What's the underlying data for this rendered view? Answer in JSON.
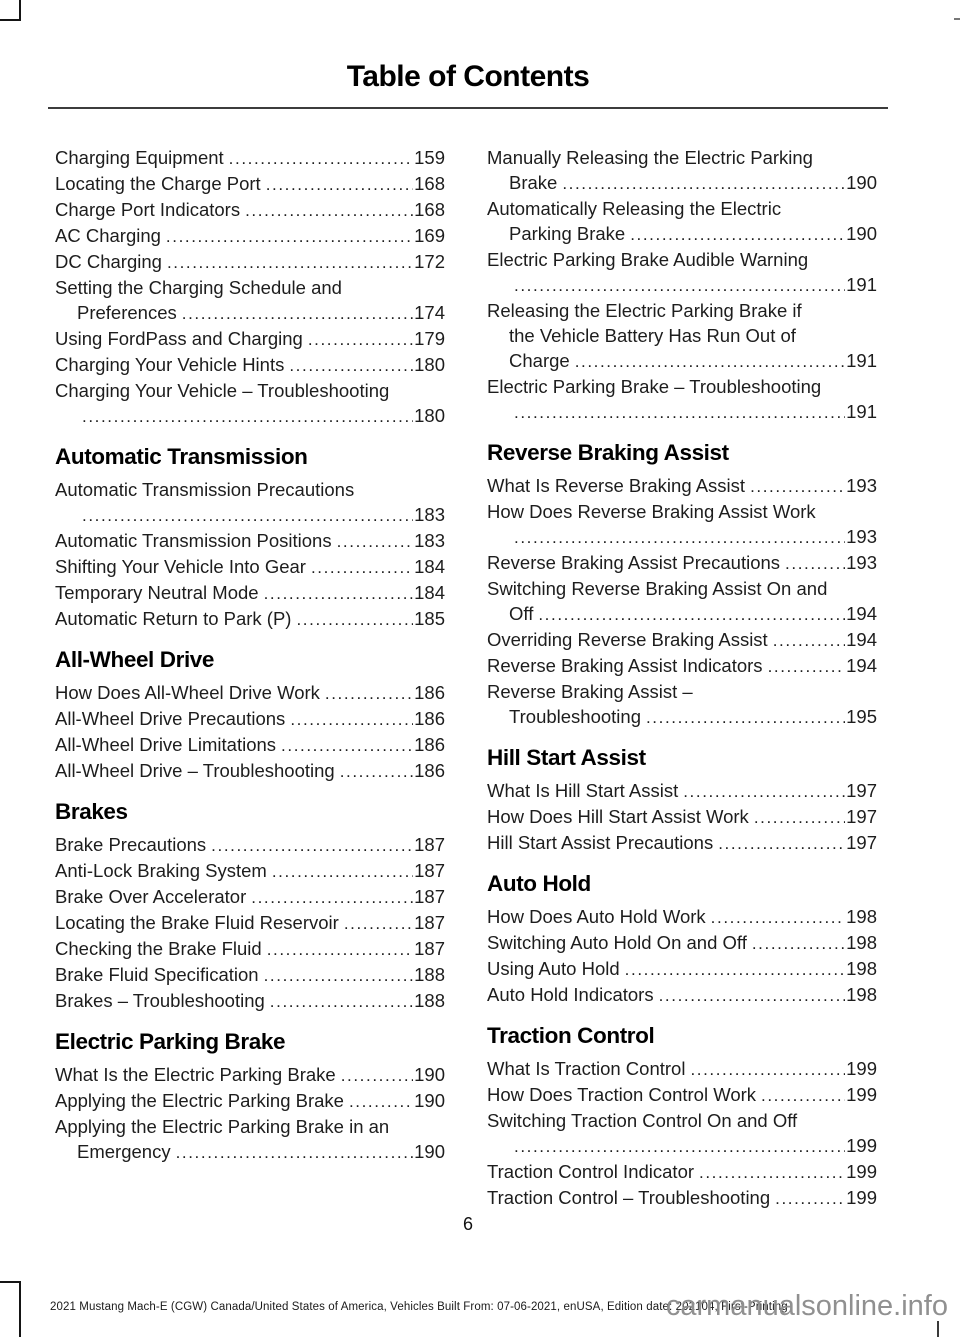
{
  "document": {
    "title": "Table of Contents",
    "page_number": "6",
    "footer": "2021 Mustang Mach-E (CGW) Canada/United States of America, Vehicles Built From: 07-06-2021, enUSA, Edition date: 202104, First-Printing",
    "watermark": "carmanualsonline.info"
  },
  "colors": {
    "text": "#1d1d1d",
    "heading": "#000000",
    "rule": "#3c3c3c",
    "watermark_gray": "#909090"
  },
  "toc": {
    "columns": [
      {
        "blocks": [
          {
            "heading": null,
            "entries": [
              {
                "lines": [
                  "Charging Equipment"
                ],
                "page": "159"
              },
              {
                "lines": [
                  "Locating the Charge Port"
                ],
                "page": "168"
              },
              {
                "lines": [
                  "Charge Port Indicators"
                ],
                "page": "168"
              },
              {
                "lines": [
                  "AC Charging"
                ],
                "page": "169"
              },
              {
                "lines": [
                  "DC Charging"
                ],
                "page": "172"
              },
              {
                "lines": [
                  "Setting the Charging Schedule and",
                  "Preferences"
                ],
                "page": "174"
              },
              {
                "lines": [
                  "Using FordPass and Charging"
                ],
                "page": "179"
              },
              {
                "lines": [
                  "Charging Your Vehicle Hints"
                ],
                "page": "180"
              },
              {
                "lines": [
                  "Charging Your Vehicle – Troubleshooting",
                  ""
                ],
                "page": "180"
              }
            ]
          },
          {
            "heading": "Automatic Transmission",
            "entries": [
              {
                "lines": [
                  "Automatic Transmission Precautions",
                  ""
                ],
                "page": "183"
              },
              {
                "lines": [
                  "Automatic Transmission Positions"
                ],
                "page": "183"
              },
              {
                "lines": [
                  "Shifting Your Vehicle Into Gear"
                ],
                "page": "184"
              },
              {
                "lines": [
                  "Temporary Neutral Mode"
                ],
                "page": "184"
              },
              {
                "lines": [
                  "Automatic Return to Park (P)"
                ],
                "page": "185"
              }
            ]
          },
          {
            "heading": "All-Wheel Drive",
            "entries": [
              {
                "lines": [
                  "How Does All-Wheel Drive Work"
                ],
                "page": "186"
              },
              {
                "lines": [
                  "All-Wheel Drive Precautions"
                ],
                "page": "186"
              },
              {
                "lines": [
                  "All-Wheel Drive Limitations"
                ],
                "page": "186"
              },
              {
                "lines": [
                  "All-Wheel Drive – Troubleshooting"
                ],
                "page": "186"
              }
            ]
          },
          {
            "heading": "Brakes",
            "entries": [
              {
                "lines": [
                  "Brake Precautions"
                ],
                "page": "187"
              },
              {
                "lines": [
                  "Anti-Lock Braking System"
                ],
                "page": "187"
              },
              {
                "lines": [
                  "Brake Over Accelerator"
                ],
                "page": "187"
              },
              {
                "lines": [
                  "Locating the Brake Fluid Reservoir"
                ],
                "page": "187"
              },
              {
                "lines": [
                  "Checking the Brake Fluid"
                ],
                "page": "187"
              },
              {
                "lines": [
                  "Brake Fluid Specification"
                ],
                "page": "188"
              },
              {
                "lines": [
                  "Brakes – Troubleshooting"
                ],
                "page": "188"
              }
            ]
          },
          {
            "heading": "Electric Parking Brake",
            "entries": [
              {
                "lines": [
                  "What Is the Electric Parking Brake"
                ],
                "page": "190"
              },
              {
                "lines": [
                  "Applying the Electric Parking Brake"
                ],
                "page": "190"
              },
              {
                "lines": [
                  "Applying the Electric Parking Brake in an",
                  "Emergency"
                ],
                "page": "190"
              }
            ]
          }
        ]
      },
      {
        "blocks": [
          {
            "heading": null,
            "entries": [
              {
                "lines": [
                  "Manually Releasing the Electric Parking",
                  "Brake"
                ],
                "page": "190"
              },
              {
                "lines": [
                  "Automatically Releasing the Electric",
                  "Parking Brake"
                ],
                "page": "190"
              },
              {
                "lines": [
                  "Electric Parking Brake Audible Warning",
                  ""
                ],
                "page": "191"
              },
              {
                "lines": [
                  "Releasing the Electric Parking Brake if",
                  "the Vehicle Battery Has Run Out of",
                  "Charge"
                ],
                "page": "191"
              },
              {
                "lines": [
                  "Electric Parking Brake – Troubleshooting",
                  ""
                ],
                "page": "191"
              }
            ]
          },
          {
            "heading": "Reverse Braking Assist",
            "entries": [
              {
                "lines": [
                  "What Is Reverse Braking Assist"
                ],
                "page": "193"
              },
              {
                "lines": [
                  "How Does Reverse Braking Assist Work",
                  ""
                ],
                "page": "193"
              },
              {
                "lines": [
                  "Reverse Braking Assist Precautions"
                ],
                "page": "193"
              },
              {
                "lines": [
                  "Switching Reverse Braking Assist On and",
                  "Off"
                ],
                "page": "194"
              },
              {
                "lines": [
                  "Overriding Reverse Braking Assist"
                ],
                "page": "194"
              },
              {
                "lines": [
                  "Reverse Braking Assist Indicators"
                ],
                "page": "194"
              },
              {
                "lines": [
                  "Reverse Braking Assist –",
                  "Troubleshooting"
                ],
                "page": "195"
              }
            ]
          },
          {
            "heading": "Hill Start Assist",
            "entries": [
              {
                "lines": [
                  "What Is Hill Start Assist"
                ],
                "page": "197"
              },
              {
                "lines": [
                  "How Does Hill Start Assist Work"
                ],
                "page": "197"
              },
              {
                "lines": [
                  "Hill Start Assist Precautions"
                ],
                "page": "197"
              }
            ]
          },
          {
            "heading": "Auto Hold",
            "entries": [
              {
                "lines": [
                  "How Does Auto Hold Work"
                ],
                "page": "198"
              },
              {
                "lines": [
                  "Switching Auto Hold On and Off"
                ],
                "page": "198"
              },
              {
                "lines": [
                  "Using Auto Hold"
                ],
                "page": "198"
              },
              {
                "lines": [
                  "Auto Hold Indicators"
                ],
                "page": "198"
              }
            ]
          },
          {
            "heading": "Traction Control",
            "entries": [
              {
                "lines": [
                  "What Is Traction Control"
                ],
                "page": "199"
              },
              {
                "lines": [
                  "How Does Traction Control Work"
                ],
                "page": "199"
              },
              {
                "lines": [
                  "Switching Traction Control On and Off",
                  ""
                ],
                "page": "199"
              },
              {
                "lines": [
                  "Traction Control Indicator"
                ],
                "page": "199"
              },
              {
                "lines": [
                  "Traction Control – Troubleshooting"
                ],
                "page": "199"
              }
            ]
          }
        ]
      }
    ]
  }
}
